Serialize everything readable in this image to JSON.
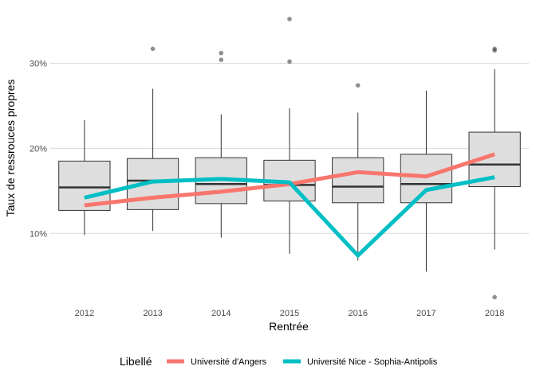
{
  "chart_data": {
    "type": "boxplot",
    "xlabel": "Rentrée",
    "ylabel": "Taux de ressrouces propres",
    "categories": [
      "2012",
      "2013",
      "2014",
      "2015",
      "2016",
      "2017",
      "2018"
    ],
    "y_ticks": [
      {
        "value": 0.1,
        "label": "10%"
      },
      {
        "value": 0.2,
        "label": "20%"
      },
      {
        "value": 0.3,
        "label": "30%"
      }
    ],
    "ylim": [
      0.017,
      0.365
    ],
    "grid": true,
    "box_fill": "#DEDEDE",
    "boxes": [
      {
        "year": "2012",
        "min": 0.098,
        "q1": 0.127,
        "median": 0.154,
        "q3": 0.185,
        "max": 0.233,
        "outliers": []
      },
      {
        "year": "2013",
        "min": 0.103,
        "q1": 0.128,
        "median": 0.162,
        "q3": 0.188,
        "max": 0.27,
        "outliers": [
          0.317
        ]
      },
      {
        "year": "2014",
        "min": 0.095,
        "q1": 0.135,
        "median": 0.158,
        "q3": 0.189,
        "max": 0.24,
        "outliers": [
          0.312,
          0.304
        ]
      },
      {
        "year": "2015",
        "min": 0.076,
        "q1": 0.138,
        "median": 0.157,
        "q3": 0.186,
        "max": 0.247,
        "outliers": [
          0.352,
          0.302
        ]
      },
      {
        "year": "2016",
        "min": 0.068,
        "q1": 0.136,
        "median": 0.155,
        "q3": 0.189,
        "max": 0.242,
        "outliers": [
          0.274
        ]
      },
      {
        "year": "2017",
        "min": 0.055,
        "q1": 0.136,
        "median": 0.158,
        "q3": 0.193,
        "max": 0.268,
        "outliers": []
      },
      {
        "year": "2018",
        "min": 0.081,
        "q1": 0.155,
        "median": 0.181,
        "q3": 0.219,
        "max": 0.293,
        "outliers": [
          0.317,
          0.315,
          0.025
        ]
      }
    ],
    "legend": {
      "title": "Libellé",
      "position": "bottom"
    },
    "series": [
      {
        "name": "Université d'Angers",
        "color": "#F8766D",
        "values": [
          0.133,
          0.142,
          0.149,
          0.158,
          0.172,
          0.167,
          0.193
        ]
      },
      {
        "name": "Université Nice - Sophia-Antipolis",
        "color": "#00BFC4",
        "values": [
          0.142,
          0.161,
          0.164,
          0.16,
          0.074,
          0.151,
          0.166
        ]
      }
    ]
  }
}
